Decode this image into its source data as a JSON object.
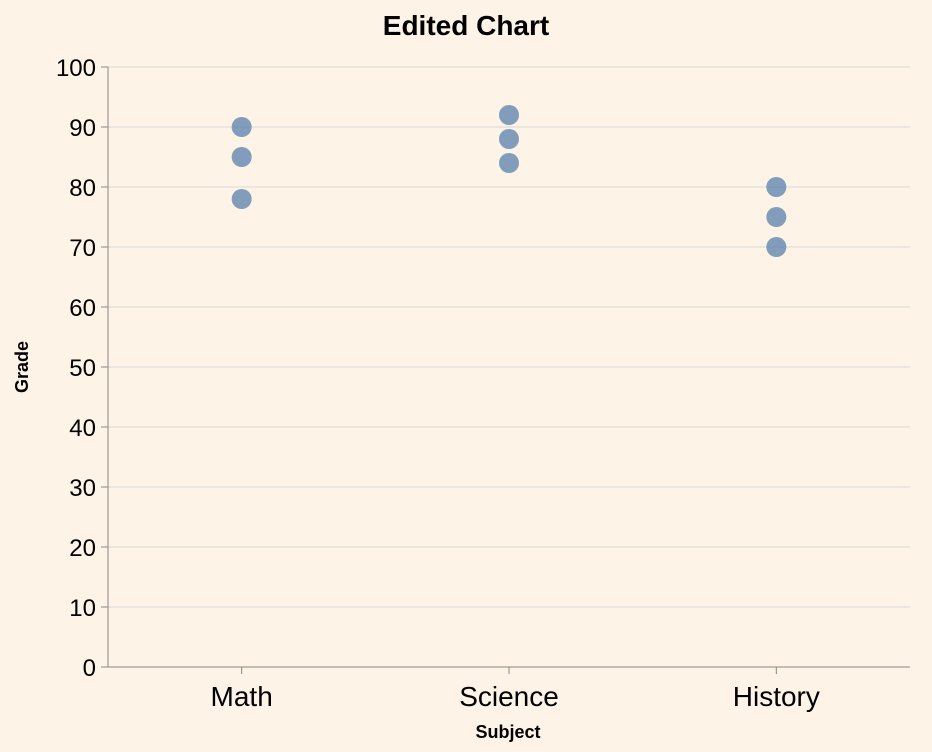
{
  "chart_data": {
    "type": "scatter",
    "title": "Edited Chart",
    "xlabel": "Subject",
    "ylabel": "Grade",
    "categories": [
      "Math",
      "Science",
      "History"
    ],
    "ylim": [
      0,
      100
    ],
    "yticks": [
      0,
      10,
      20,
      30,
      40,
      50,
      60,
      70,
      80,
      90,
      100
    ],
    "grid": true,
    "point_color": "#4c78a8",
    "points": [
      {
        "x": "Math",
        "y": 90
      },
      {
        "x": "Math",
        "y": 85
      },
      {
        "x": "Math",
        "y": 78
      },
      {
        "x": "Science",
        "y": 92
      },
      {
        "x": "Science",
        "y": 88
      },
      {
        "x": "Science",
        "y": 84
      },
      {
        "x": "History",
        "y": 80
      },
      {
        "x": "History",
        "y": 75
      },
      {
        "x": "History",
        "y": 70
      }
    ]
  },
  "colors": {
    "background": "#fdf3e6",
    "grid": "#d9d9d9",
    "axis": "#888888"
  }
}
